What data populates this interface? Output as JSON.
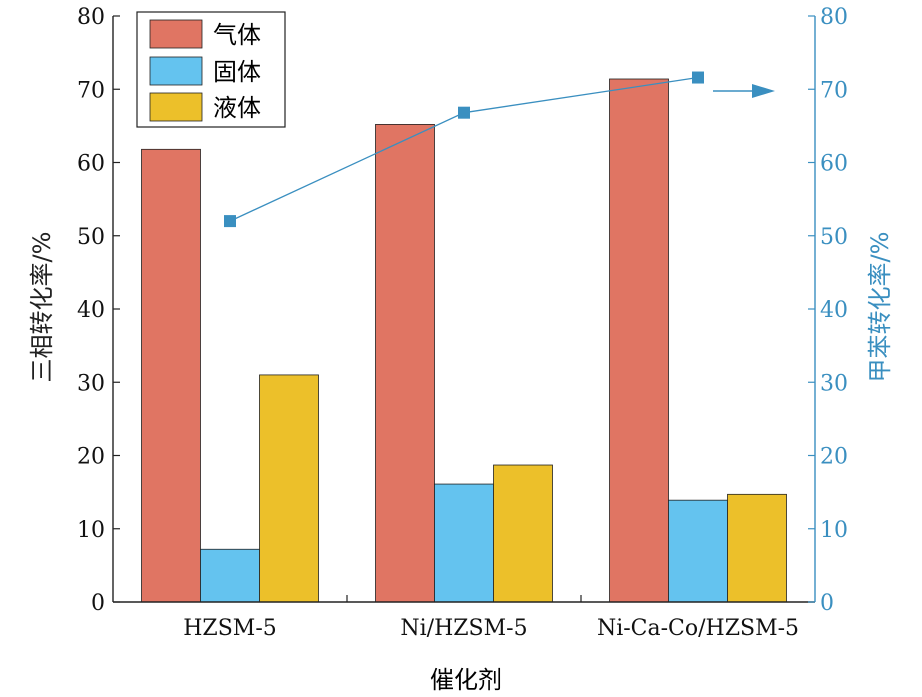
{
  "chart_data": {
    "type": "bar",
    "categories": [
      "HZSM-5",
      "Ni/HZSM-5",
      "Ni-Ca-Co/HZSM-5"
    ],
    "series": [
      {
        "name": "气体",
        "values": [
          61.8,
          65.2,
          71.4
        ],
        "color": "#e07563"
      },
      {
        "name": "固体",
        "values": [
          7.2,
          16.1,
          13.9
        ],
        "color": "#64c3ef"
      },
      {
        "name": "液体",
        "values": [
          31.0,
          18.7,
          14.7
        ],
        "color": "#ecc02a"
      }
    ],
    "line_series": {
      "values": [
        52.0,
        66.8,
        71.6
      ],
      "color": "#3a8fc0",
      "axis": "right"
    },
    "xlabel": "催化剂",
    "ylabel": "三相转化率/%",
    "y2label": "甲苯转化率/%",
    "ylim": [
      0,
      80
    ],
    "y2lim": [
      0,
      80
    ],
    "yticks": [
      0,
      10,
      20,
      30,
      40,
      50,
      60,
      70,
      80
    ],
    "legend_position": "top-left",
    "grid": false,
    "annotation": "arrow pointing to right axis",
    "axis_color_left": "#222222",
    "axis_color_right": "#3a8fc0"
  }
}
